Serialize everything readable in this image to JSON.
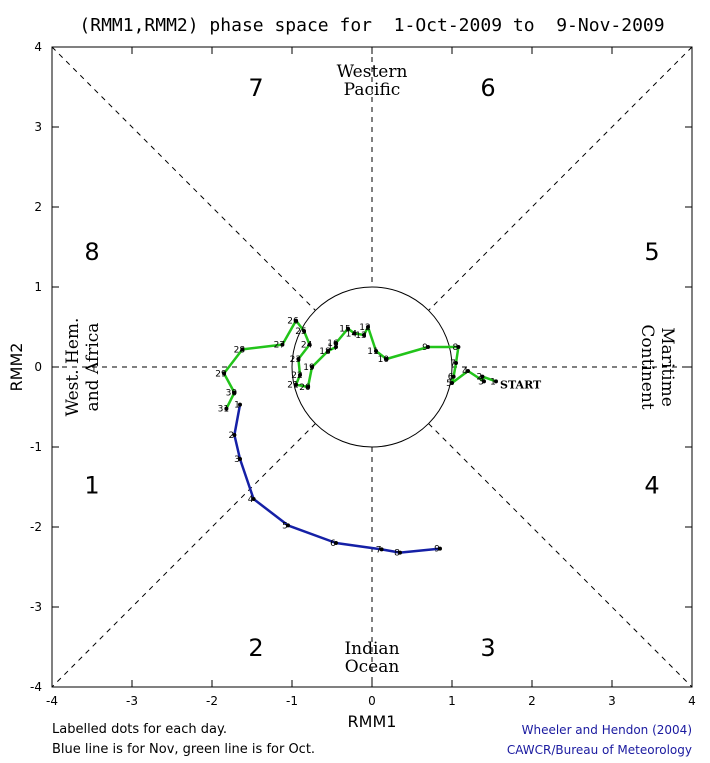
{
  "chart_data": {
    "type": "scatter",
    "title": "(RMM1,RMM2) phase space for  1-Oct-2009 to  9-Nov-2009",
    "xlabel": "RMM1",
    "ylabel": "RMM2",
    "xlim": [
      -4,
      4
    ],
    "ylim": [
      -4,
      4
    ],
    "xticks": [
      -4,
      -3,
      -2,
      -1,
      0,
      1,
      2,
      3,
      4
    ],
    "yticks": [
      -4,
      -3,
      -2,
      -1,
      0,
      1,
      2,
      3,
      4
    ],
    "unit_circle_radius": 1,
    "phase_labels": [
      {
        "label": "1",
        "x": -3.5,
        "y": -1.47
      },
      {
        "label": "2",
        "x": -1.45,
        "y": -3.5
      },
      {
        "label": "3",
        "x": 1.45,
        "y": -3.5
      },
      {
        "label": "4",
        "x": 3.5,
        "y": -1.47
      },
      {
        "label": "5",
        "x": 3.5,
        "y": 1.45
      },
      {
        "label": "6",
        "x": 1.45,
        "y": 3.5
      },
      {
        "label": "7",
        "x": -1.45,
        "y": 3.5
      },
      {
        "label": "8",
        "x": -3.5,
        "y": 1.45
      }
    ],
    "region_labels": {
      "top": [
        "Western",
        "Pacific"
      ],
      "bottom": [
        "Indian",
        "Ocean"
      ],
      "left": [
        "West. Hem.",
        "and Africa"
      ],
      "right": [
        "Maritime",
        "Continent"
      ]
    },
    "start_label": "START",
    "series": [
      {
        "name": "Oct",
        "color": "#22c41a",
        "points": [
          {
            "day": "1",
            "x": 1.55,
            "y": -0.18
          },
          {
            "day": "2",
            "x": 1.38,
            "y": -0.12
          },
          {
            "day": "3",
            "x": 1.4,
            "y": -0.18
          },
          {
            "day": "4",
            "x": 1.2,
            "y": -0.05
          },
          {
            "day": "5",
            "x": 1.0,
            "y": -0.2
          },
          {
            "day": "6",
            "x": 1.02,
            "y": -0.12
          },
          {
            "day": "7",
            "x": 1.05,
            "y": 0.05
          },
          {
            "day": "8",
            "x": 1.08,
            "y": 0.25
          },
          {
            "day": "9",
            "x": 0.7,
            "y": 0.25
          },
          {
            "day": "10",
            "x": 0.18,
            "y": 0.1
          },
          {
            "day": "11",
            "x": 0.05,
            "y": 0.2
          },
          {
            "day": "12",
            "x": -0.05,
            "y": 0.5
          },
          {
            "day": "13",
            "x": -0.1,
            "y": 0.4
          },
          {
            "day": "14",
            "x": -0.22,
            "y": 0.42
          },
          {
            "day": "15",
            "x": -0.3,
            "y": 0.48
          },
          {
            "day": "16",
            "x": -0.45,
            "y": 0.3
          },
          {
            "day": "17",
            "x": -0.45,
            "y": 0.25
          },
          {
            "day": "18",
            "x": -0.55,
            "y": 0.2
          },
          {
            "day": "19",
            "x": -0.75,
            "y": 0.0
          },
          {
            "day": "20",
            "x": -0.8,
            "y": -0.25
          },
          {
            "day": "21",
            "x": -0.95,
            "y": -0.22
          },
          {
            "day": "22",
            "x": -0.9,
            "y": -0.1
          },
          {
            "day": "23",
            "x": -0.92,
            "y": 0.1
          },
          {
            "day": "24",
            "x": -0.78,
            "y": 0.28
          },
          {
            "day": "25",
            "x": -0.85,
            "y": 0.45
          },
          {
            "day": "26",
            "x": -0.95,
            "y": 0.58
          },
          {
            "day": "27",
            "x": -1.12,
            "y": 0.28
          },
          {
            "day": "28",
            "x": -1.62,
            "y": 0.22
          },
          {
            "day": "29",
            "x": -1.85,
            "y": -0.08
          },
          {
            "day": "30",
            "x": -1.72,
            "y": -0.32
          },
          {
            "day": "31",
            "x": -1.82,
            "y": -0.52
          }
        ]
      },
      {
        "name": "Nov",
        "color": "#1520a6",
        "points": [
          {
            "day": "1",
            "x": -1.65,
            "y": -0.47
          },
          {
            "day": "2",
            "x": -1.72,
            "y": -0.85
          },
          {
            "day": "3",
            "x": -1.65,
            "y": -1.15
          },
          {
            "day": "4",
            "x": -1.48,
            "y": -1.65
          },
          {
            "day": "5",
            "x": -1.05,
            "y": -1.98
          },
          {
            "day": "6",
            "x": -0.45,
            "y": -2.2
          },
          {
            "day": "7",
            "x": 0.12,
            "y": -2.28
          },
          {
            "day": "8",
            "x": 0.35,
            "y": -2.32
          },
          {
            "day": "9",
            "x": 0.85,
            "y": -2.27
          }
        ]
      }
    ]
  },
  "footer": {
    "line1": "Labelled dots for each day.",
    "line2": "Blue line is for Nov, green line is for Oct.",
    "credit1": "Wheeler and Hendon (2004)",
    "credit2": "CAWCR/Bureau of Meteorology"
  }
}
